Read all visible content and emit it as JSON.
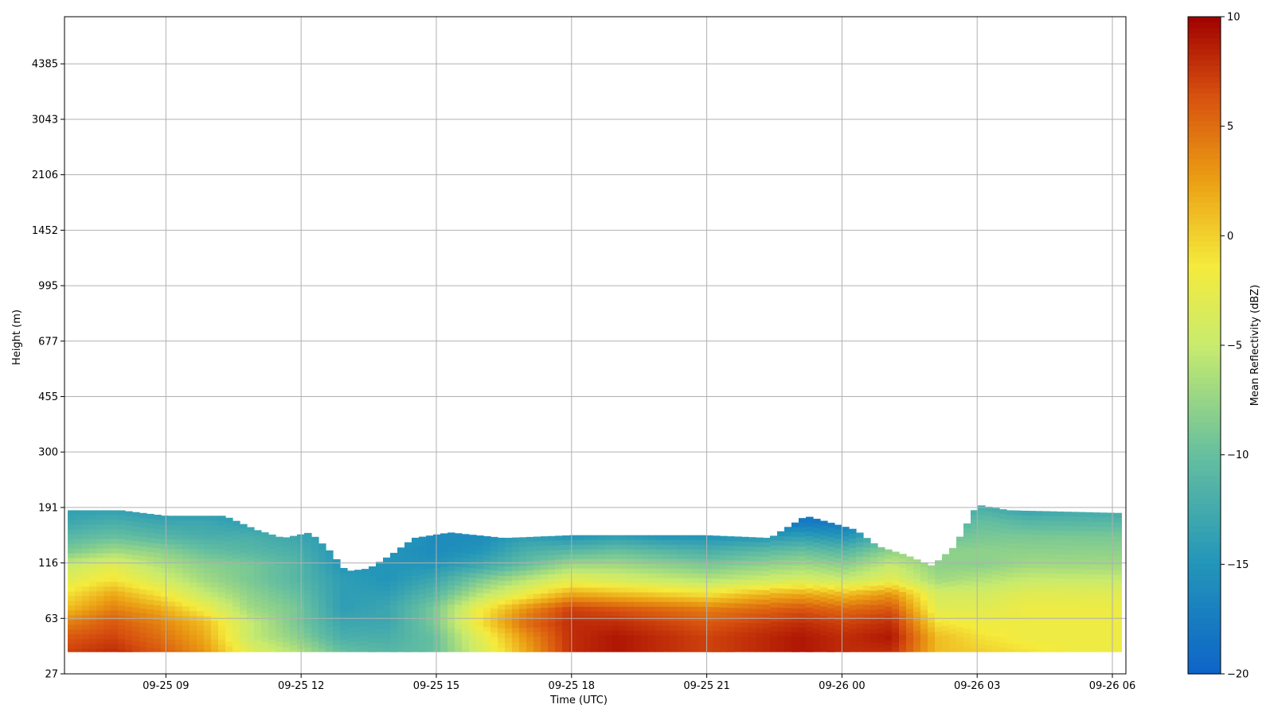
{
  "chart_data": {
    "type": "heatmap",
    "xlabel": "Time (UTC)",
    "ylabel": "Height (m)",
    "x_ticks": [
      "09-25 09",
      "09-25 12",
      "09-25 15",
      "09-25 18",
      "09-25 21",
      "09-26 00",
      "09-26 03",
      "09-26 06"
    ],
    "x_tick_hours": [
      9,
      12,
      15,
      18,
      21,
      24,
      27,
      30
    ],
    "xlim_hours": [
      6.75,
      30.3
    ],
    "y_ticks": [
      27,
      63,
      116,
      191,
      300,
      455,
      677,
      995,
      1452,
      2106,
      3043,
      4385
    ],
    "ylim_index": [
      0,
      11.85
    ],
    "gap_index": [
      4.23,
      4.54
    ],
    "colorbar": {
      "label": "Mean Reflectivity (dBZ)",
      "range": [
        -20,
        10
      ],
      "ticks": [
        10,
        5,
        0,
        -5,
        -10,
        -15,
        -20
      ]
    },
    "grid": true,
    "cloud_top": [
      [
        6.8,
        2.95
      ],
      [
        8,
        2.95
      ],
      [
        9,
        2.85
      ],
      [
        10.3,
        2.85
      ],
      [
        11,
        2.6
      ],
      [
        11.6,
        2.45
      ],
      [
        12.2,
        2.55
      ],
      [
        12.6,
        2.25
      ],
      [
        13.0,
        1.85
      ],
      [
        13.5,
        1.9
      ],
      [
        14.0,
        2.15
      ],
      [
        14.5,
        2.45
      ],
      [
        15.3,
        2.55
      ],
      [
        16.5,
        2.45
      ],
      [
        18,
        2.5
      ],
      [
        21,
        2.5
      ],
      [
        22.4,
        2.45
      ],
      [
        23.2,
        2.85
      ],
      [
        24.3,
        2.6
      ],
      [
        24.8,
        2.3
      ],
      [
        25.4,
        2.15
      ],
      [
        26.0,
        1.95
      ],
      [
        26.5,
        2.3
      ],
      [
        27.0,
        3.05
      ],
      [
        27.7,
        2.95
      ],
      [
        30.2,
        2.9
      ]
    ],
    "field": [
      [
        -14,
        -13,
        -11,
        -9,
        -5,
        -3,
        -1,
        1,
        4,
        6,
        7
      ],
      [
        -14,
        -12,
        -10,
        -7,
        -3,
        -1,
        2,
        4,
        6,
        7,
        8
      ],
      [
        -15,
        -13,
        -11,
        -8,
        -6,
        -4,
        -1,
        2,
        4,
        5,
        6
      ],
      [
        -15,
        -13,
        -12,
        -10,
        -8,
        -7,
        -5,
        -2,
        1,
        2,
        3
      ],
      [
        -15,
        -14,
        -12,
        -11,
        -9,
        -9,
        -8,
        -7,
        -5,
        -5,
        -3
      ],
      [
        -16,
        -15,
        -13,
        -12,
        -11,
        -11,
        -10,
        -9,
        -9,
        -8,
        -6
      ],
      [
        -17,
        -16,
        -15,
        -15,
        -15,
        -14,
        -14,
        -14,
        -13,
        -12,
        -10
      ],
      [
        -16,
        -14,
        -14,
        -15,
        -15,
        -15,
        -14,
        -13,
        -13,
        -12,
        -11
      ],
      [
        -15,
        -15,
        -16,
        -16,
        -15,
        -13,
        -11,
        -9,
        -9,
        -10,
        -10
      ],
      [
        -14,
        -15,
        -16,
        -15,
        -13,
        -9,
        -6,
        -2,
        -1,
        -3,
        -4
      ],
      [
        -14,
        -16,
        -14,
        -12,
        -10,
        -6,
        -2,
        3,
        5,
        3,
        2
      ],
      [
        -15,
        -16,
        -15,
        -11,
        -7,
        -3,
        2,
        7,
        8,
        8,
        8
      ],
      [
        -16,
        -16,
        -14,
        -10,
        -7,
        -4,
        1,
        6,
        8,
        9,
        9
      ],
      [
        -16,
        -16,
        -15,
        -11,
        -8,
        -5,
        0,
        5,
        7,
        8,
        8
      ],
      [
        -16,
        -16,
        -15,
        -12,
        -9,
        -6,
        -1,
        4,
        6,
        7,
        7
      ],
      [
        -16,
        -17,
        -15,
        -11,
        -8,
        -5,
        1,
        5,
        7,
        8,
        8
      ],
      [
        -17,
        -18,
        -14,
        -10,
        -7,
        -4,
        2,
        6,
        8,
        9,
        9
      ],
      [
        -17,
        -18,
        -15,
        -11,
        -8,
        -5,
        1,
        5,
        7,
        8,
        8
      ],
      [
        -15,
        -14,
        -11,
        -8,
        -5,
        -3,
        3,
        6,
        8,
        9,
        8
      ],
      [
        -14,
        -12,
        -10,
        -8,
        -8,
        -7,
        -4,
        -3,
        -1,
        1,
        1
      ],
      [
        -12,
        -10,
        -9,
        -8,
        -8,
        -6,
        -4,
        -3,
        -2,
        -1,
        0
      ],
      [
        -14,
        -11,
        -9,
        -8,
        -7,
        -5,
        -3,
        -2,
        -2,
        -2,
        -1
      ],
      [
        -13,
        -11,
        -9,
        -8,
        -7,
        -5,
        -3,
        -2,
        -2,
        -2,
        -2
      ],
      [
        -13,
        -11,
        -9,
        -8,
        -7,
        -5,
        -3,
        -2,
        -2,
        -2,
        -2
      ]
    ]
  }
}
